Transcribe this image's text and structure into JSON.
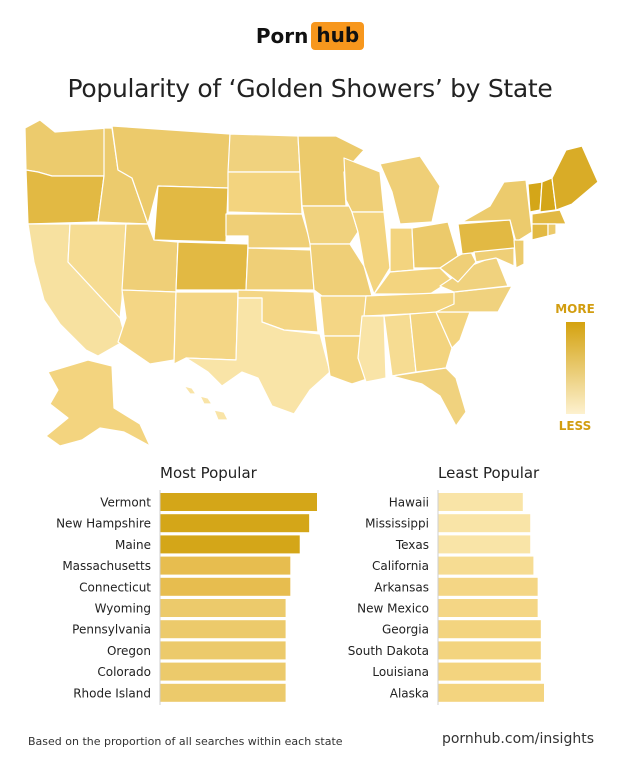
{
  "brand": {
    "part1": "Porn",
    "part2": "hub",
    "accent": "#f7971d"
  },
  "title": "Popularity of ‘Golden Showers’ by State",
  "legend": {
    "more": "MORE",
    "less": "LESS",
    "high_color": "#d4a20f",
    "low_color": "#fdf1cf"
  },
  "chart_data": [
    {
      "type": "map",
      "title": "Popularity of ‘Golden Showers’ by State",
      "legend": [
        "MORE",
        "LESS"
      ],
      "note": "Choropleth of US states; Vermont, New Hampshire, Maine darkest"
    },
    {
      "type": "bar",
      "orientation": "horizontal",
      "title": "Most Popular",
      "categories": [
        "Vermont",
        "New Hampshire",
        "Maine",
        "Massachusetts",
        "Connecticut",
        "Wyoming",
        "Pennsylvania",
        "Oregon",
        "Colorado",
        "Rhode Island"
      ],
      "values": [
        100,
        95,
        89,
        83,
        83,
        80,
        80,
        80,
        80,
        80
      ],
      "colors": [
        "#d4a618",
        "#d4a618",
        "#d4a618",
        "#e7bd4f",
        "#e7bd4f",
        "#ecca6b",
        "#ecca6b",
        "#ecca6b",
        "#ecca6b",
        "#ecca6b"
      ]
    },
    {
      "type": "bar",
      "orientation": "horizontal",
      "title": "Least Popular",
      "categories": [
        "Hawaii",
        "Mississippi",
        "Texas",
        "California",
        "Arkansas",
        "New Mexico",
        "Georgia",
        "South Dakota",
        "Louisiana",
        "Alaska"
      ],
      "values": [
        80,
        87,
        87,
        90,
        94,
        94,
        97,
        97,
        97,
        100
      ],
      "colors": [
        "#f9e4a7",
        "#f9e4a7",
        "#f9e4a7",
        "#f6dc92",
        "#f4d685",
        "#f4d685",
        "#f3d47f",
        "#f3d47f",
        "#f3d47f",
        "#f3d47f"
      ]
    }
  ],
  "footnote": "Based on the proportion of all searches within each state",
  "site": "pornhub.com/insights"
}
